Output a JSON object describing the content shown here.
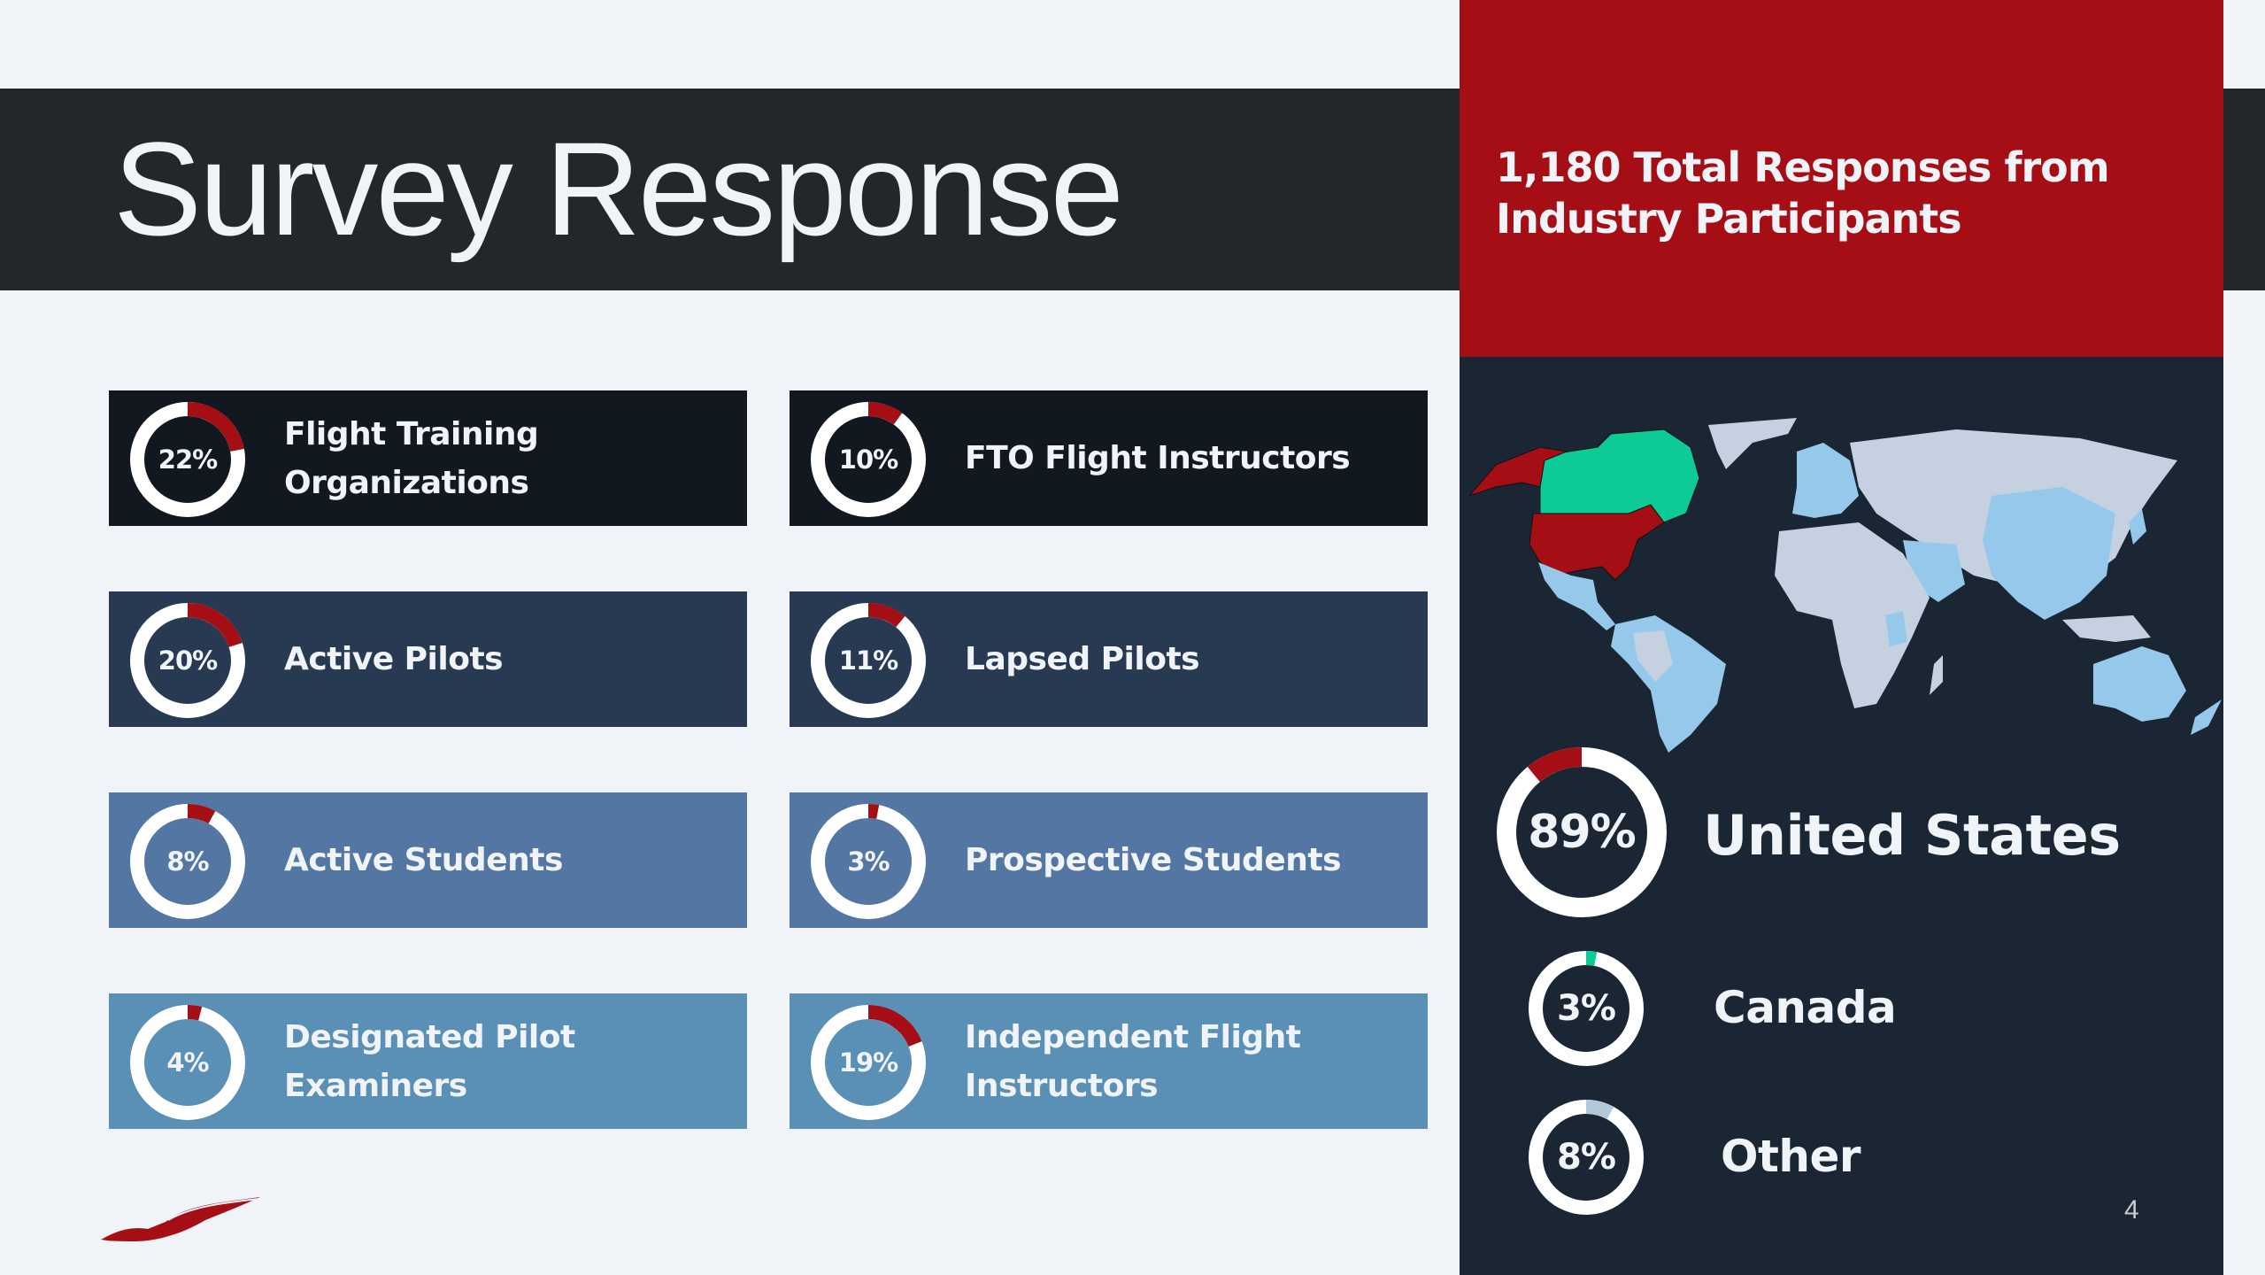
{
  "slide": {
    "title": "Survey Response",
    "page_number": "4"
  },
  "summary": {
    "line1": "1,180 Total Responses from",
    "line2": "Industry Participants",
    "total_responses": 1180
  },
  "colors": {
    "background": "#f0f3f8",
    "header_band": "#222829",
    "accent_red": "#a50e15",
    "right_panel": "#1b2635",
    "ring_base": "#ffffff",
    "canada_green": "#0ccb96",
    "other_grey_blue": "#b5c8d9",
    "map_land_light": "#c5d1e0",
    "map_land_blue": "#95c8ea",
    "row_colors": [
      "#111820",
      "#283a52",
      "#5476a3",
      "#5a8fb6"
    ]
  },
  "categories": [
    {
      "label": "Flight Training Organizations",
      "line1": "Flight Training",
      "line2": "Organizations",
      "percent": 22,
      "pct_label": "22%"
    },
    {
      "label": "FTO Flight Instructors",
      "line1": "FTO Flight Instructors",
      "line2": "",
      "percent": 10,
      "pct_label": "10%"
    },
    {
      "label": "Active Pilots",
      "line1": "Active Pilots",
      "line2": "",
      "percent": 20,
      "pct_label": "20%"
    },
    {
      "label": "Lapsed Pilots",
      "line1": "Lapsed Pilots",
      "line2": "",
      "percent": 11,
      "pct_label": "11%"
    },
    {
      "label": "Active Students",
      "line1": "Active Students",
      "line2": "",
      "percent": 8,
      "pct_label": "8%"
    },
    {
      "label": "Prospective Students",
      "line1": "Prospective Students",
      "line2": "",
      "percent": 3,
      "pct_label": "3%"
    },
    {
      "label": "Designated Pilot Examiners",
      "line1": "Designated Pilot",
      "line2": "Examiners",
      "percent": 4,
      "pct_label": "4%"
    },
    {
      "label": "Independent Flight Instructors",
      "line1": "Independent Flight",
      "line2": "Instructors",
      "percent": 19,
      "pct_label": "19%"
    }
  ],
  "geography": [
    {
      "label": "United States",
      "percent": 89,
      "pct_label": "89%",
      "segment_color": "#a50e15"
    },
    {
      "label": "Canada",
      "percent": 3,
      "pct_label": "3%",
      "segment_color": "#0ccb96"
    },
    {
      "label": "Other",
      "percent": 8,
      "pct_label": "8%",
      "segment_color": "#b5c8d9"
    }
  ],
  "icons": {
    "logo": "red-bird-logo-icon",
    "map": "world-map-icon"
  },
  "chart_data": [
    {
      "type": "pie",
      "title": "Respondent Categories",
      "categories": [
        "Flight Training Organizations",
        "FTO Flight Instructors",
        "Active Pilots",
        "Lapsed Pilots",
        "Active Students",
        "Prospective Students",
        "Designated Pilot Examiners",
        "Independent Flight Instructors"
      ],
      "values": [
        22,
        10,
        20,
        11,
        8,
        3,
        4,
        19
      ],
      "unit": "%"
    },
    {
      "type": "pie",
      "title": "Respondent Location",
      "categories": [
        "United States",
        "Canada",
        "Other"
      ],
      "values": [
        89,
        3,
        8
      ],
      "unit": "%"
    }
  ]
}
